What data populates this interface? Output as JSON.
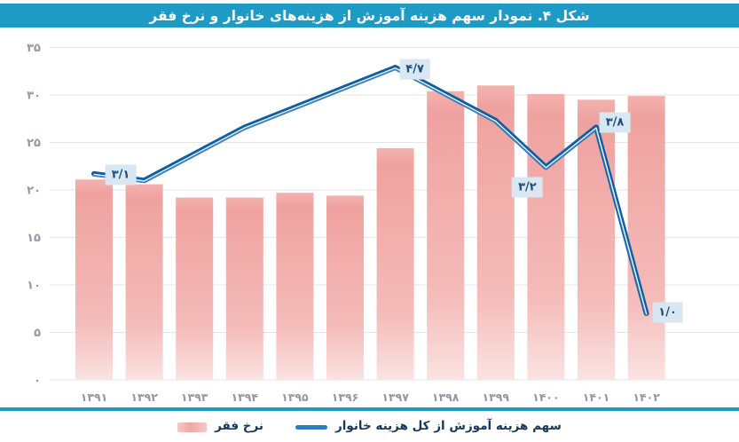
{
  "title_bar": {
    "text": "شکل ۴. نمودار سهم هزینه آموزش از هزینه‌های خانوار و نرخ فقر",
    "bg_color": "#1d9ac6",
    "text_color": "#ffffff"
  },
  "legend": {
    "divider_color": "#1d9ac6",
    "items": [
      {
        "label": "نرخ فقر",
        "swatch": "bar",
        "color": "#f0a7a4"
      },
      {
        "label": "سهم هزینه آموزش از کل هزینه خانوار",
        "swatch": "line",
        "color": "#2381c0"
      }
    ]
  },
  "chart_data": {
    "type": "bar+line",
    "title": "شکل ۴. نمودار سهم هزینه آموزش از هزینه‌های خانوار و نرخ فقر",
    "categories": [
      "۱۳۹۱",
      "۱۳۹۲",
      "۱۳۹۳",
      "۱۳۹۴",
      "۱۳۹۵",
      "۱۳۹۶",
      "۱۳۹۷",
      "۱۳۹۸",
      "۱۳۹۹",
      "۱۴۰۰",
      "۱۴۰۱",
      "۱۴۰۲"
    ],
    "series": [
      {
        "name": "نرخ فقر",
        "type": "bar",
        "axis": "primary",
        "values": [
          21.1,
          20.6,
          19.2,
          19.2,
          19.7,
          19.4,
          24.4,
          30.4,
          31.0,
          30.1,
          29.5,
          29.9
        ],
        "gradient": [
          "#f3b2af",
          "#efa29f",
          "#f4bcba",
          "#fae3e2"
        ]
      },
      {
        "name": "سهم هزینه آموزش از کل هزینه خانوار",
        "type": "line",
        "axis": "secondary",
        "values": [
          3.1,
          3.0,
          3.4,
          3.8,
          4.1,
          4.4,
          4.7,
          4.3,
          3.9,
          3.2,
          3.8,
          1.0
        ],
        "color_dark": "#0f5fa8",
        "color_light": "#3c86c6",
        "point_labels": [
          {
            "index": 0,
            "text": "۳/۱",
            "dx": 30,
            "dy": 1
          },
          {
            "index": 6,
            "text": "۴/۷",
            "dx": 22,
            "dy": 2
          },
          {
            "index": 9,
            "text": "۳/۲",
            "dx": -21,
            "dy": 23
          },
          {
            "index": 10,
            "text": "۳/۸",
            "dx": 21,
            "dy": -5
          },
          {
            "index": 11,
            "text": "۱/۰",
            "dx": 24,
            "dy": -1
          }
        ]
      }
    ],
    "primary_axis": {
      "min": 0,
      "max": 35,
      "step": 5,
      "tick_labels": [
        "۰",
        "۵",
        "۱۰",
        "۱۵",
        "۲۰",
        "۲۵",
        "۳۰",
        "۳۵"
      ]
    },
    "secondary_axis": {
      "min": 0,
      "max": 5,
      "visible": false
    },
    "grid": "horizontal",
    "gridline_color": "#e4e5e7",
    "label_box": {
      "bg": "#d8e7f1",
      "text_color": "#1f4e79"
    }
  }
}
